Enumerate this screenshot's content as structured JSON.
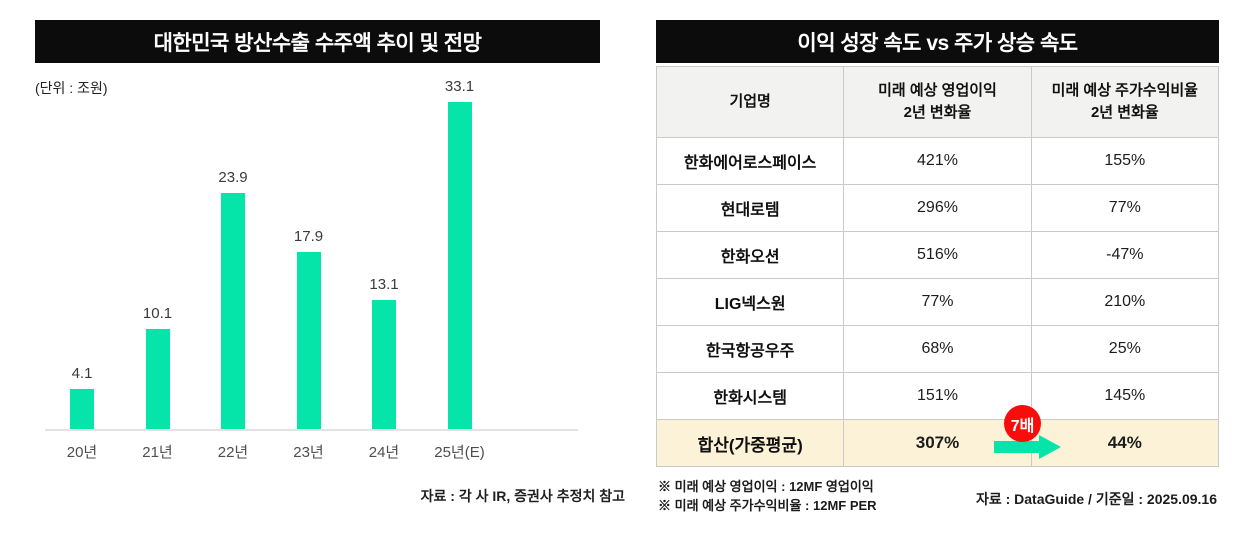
{
  "colors": {
    "accent_green": "#05e4a9",
    "badge_red": "#f90c0c",
    "highlight_row_bg": "#fcf2d7",
    "header_row_bg": "#f2f2f0",
    "title_bar_bg": "#0c0c0c"
  },
  "chart_data": [
    {
      "type": "bar",
      "title": "대한민국 방산수출 수주액 추이 및 전망",
      "unit_label": "(단위 : 조원)",
      "categories": [
        "20년",
        "21년",
        "22년",
        "23년",
        "24년",
        "25년(E)"
      ],
      "values": [
        4.1,
        10.1,
        23.9,
        17.9,
        13.1,
        33.1
      ],
      "ylim": [
        0,
        33.1
      ],
      "grid": false,
      "bar_color": "#05e4a9",
      "source": "자료 : 각 사 IR, 증권사 추정치 참고"
    },
    {
      "type": "table",
      "title": "이익 성장 속도 vs 주가 상승 속도",
      "columns": [
        "기업명",
        "미래 예상 영업이익\n2년 변화율",
        "미래 예상 주가수익비율\n2년 변화율"
      ],
      "rows": [
        {
          "name": "한화에어로스페이스",
          "op_change": "421%",
          "per_change": "155%"
        },
        {
          "name": "현대로템",
          "op_change": "296%",
          "per_change": "77%"
        },
        {
          "name": "한화오션",
          "op_change": "516%",
          "per_change": "-47%"
        },
        {
          "name": "LIG넥스원",
          "op_change": "77%",
          "per_change": "210%"
        },
        {
          "name": "한국항공우주",
          "op_change": "68%",
          "per_change": "25%"
        },
        {
          "name": "한화시스템",
          "op_change": "151%",
          "per_change": "145%"
        }
      ],
      "total_row": {
        "name": "합산(가중평균)",
        "op_change": "307%",
        "per_change": "44%"
      },
      "badge_label": "7배",
      "footnotes": [
        "※ 미래 예상 영업이익 : 12MF 영업이익",
        "※ 미래 예상 주가수익비율 : 12MF PER"
      ],
      "source": "자료 : DataGuide / 기준일 : 2025.09.16"
    }
  ]
}
